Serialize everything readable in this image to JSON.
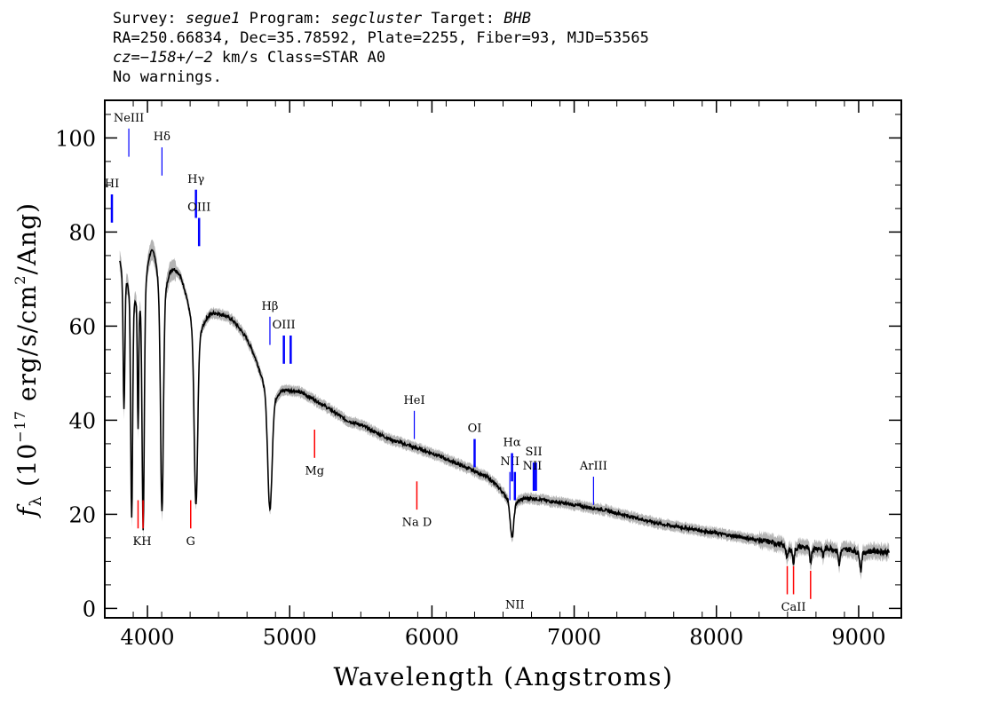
{
  "header": {
    "survey_label": "Survey:",
    "survey": "segue1",
    "program_label": "Program:",
    "program": "segcluster",
    "target_label": "Target:",
    "target": "BHB",
    "line2": "RA=250.66834, Dec=35.78592, Plate=2255, Fiber=93, MJD=53565",
    "cz_label": "cz=",
    "cz_value": "−158+/−2",
    "cz_units": "km/s Class=STAR A0",
    "line4": "No warnings."
  },
  "chart_data": {
    "type": "line",
    "xlabel": "Wavelength (Angstroms)",
    "ylabel_parts": {
      "f": "f",
      "sub": "λ",
      "open": " (10",
      "exp1": "−17",
      "mid": " erg/s/cm",
      "exp2": "2",
      "close": "/Ang)"
    },
    "xlim": [
      3700,
      9300
    ],
    "ylim": [
      -2,
      108
    ],
    "xticks": [
      4000,
      5000,
      6000,
      7000,
      8000,
      9000
    ],
    "xtick_labels": [
      "4000",
      "5000",
      "6000",
      "7000",
      "8000",
      "9000"
    ],
    "yticks": [
      0,
      20,
      40,
      60,
      80,
      100
    ],
    "ytick_labels": [
      "0",
      "20",
      "40",
      "60",
      "80",
      "100"
    ],
    "grid": false,
    "colors": {
      "flux": "#000000",
      "error": "#b4b4b4",
      "emission": "#0000ff",
      "absorption": "#ff0000"
    },
    "continuum": [
      [
        3800,
        80
      ],
      [
        3850,
        86
      ],
      [
        3900,
        88
      ],
      [
        3950,
        90
      ],
      [
        4000,
        88
      ],
      [
        4050,
        87
      ],
      [
        4100,
        82
      ],
      [
        4150,
        80
      ],
      [
        4200,
        77
      ],
      [
        4300,
        72
      ],
      [
        4400,
        67
      ],
      [
        4500,
        64
      ],
      [
        4600,
        62
      ],
      [
        4700,
        59
      ],
      [
        4800,
        55
      ],
      [
        4900,
        51
      ],
      [
        5000,
        48
      ],
      [
        5100,
        46
      ],
      [
        5200,
        44
      ],
      [
        5300,
        42
      ],
      [
        5400,
        40
      ],
      [
        5500,
        39
      ],
      [
        5600,
        37.5
      ],
      [
        5700,
        36
      ],
      [
        5800,
        35
      ],
      [
        5900,
        34
      ],
      [
        6000,
        33
      ],
      [
        6200,
        30.5
      ],
      [
        6400,
        28
      ],
      [
        6500,
        26
      ],
      [
        6600,
        24.5
      ],
      [
        6800,
        23
      ],
      [
        7000,
        22
      ],
      [
        7200,
        21
      ],
      [
        7400,
        19.5
      ],
      [
        7600,
        18
      ],
      [
        7800,
        17
      ],
      [
        8000,
        16
      ],
      [
        8200,
        15
      ],
      [
        8400,
        14
      ],
      [
        8600,
        13.5
      ],
      [
        8800,
        13
      ],
      [
        9000,
        12.5
      ],
      [
        9200,
        12
      ]
    ],
    "absorption_features": [
      {
        "center": 3835,
        "depth_to": 48,
        "width": 8
      },
      {
        "center": 3889,
        "depth_to": 27,
        "width": 9
      },
      {
        "center": 3934,
        "depth_to": 55,
        "width": 6
      },
      {
        "center": 3970,
        "depth_to": 24,
        "width": 10
      },
      {
        "center": 4102,
        "depth_to": 22,
        "width": 13
      },
      {
        "center": 4341,
        "depth_to": 22,
        "width": 16
      },
      {
        "center": 4861,
        "depth_to": 21,
        "width": 20
      },
      {
        "center": 6563,
        "depth_to": 15,
        "width": 16
      },
      {
        "center": 8498,
        "depth_to": 11,
        "width": 8
      },
      {
        "center": 8542,
        "depth_to": 10,
        "width": 8
      },
      {
        "center": 8662,
        "depth_to": 10,
        "width": 8
      },
      {
        "center": 8750,
        "depth_to": 11,
        "width": 6
      },
      {
        "center": 8863,
        "depth_to": 9,
        "width": 6
      },
      {
        "center": 9015,
        "depth_to": 8,
        "width": 7
      }
    ],
    "emission_lines": [
      {
        "label": "HI",
        "x": 3750,
        "y1": 82,
        "y2": 88,
        "label_y": 89.5,
        "bold": true
      },
      {
        "label": "NeIII",
        "x": 3869,
        "y1": 96,
        "y2": 102,
        "label_y": 103.5,
        "bold": false
      },
      {
        "label": "Hδ",
        "x": 4102,
        "y1": 92,
        "y2": 98,
        "label_y": 99.5,
        "bold": false
      },
      {
        "label": "Hγ",
        "x": 4341,
        "y1": 83,
        "y2": 89,
        "label_y": 90.5,
        "bold": true
      },
      {
        "label": "OIII",
        "x": 4363,
        "y1": 77,
        "y2": 83,
        "label_y": 84.5,
        "bold": true
      },
      {
        "label": "Hβ",
        "x": 4861,
        "y1": 56,
        "y2": 62,
        "label_y": 63.5,
        "bold": false
      },
      {
        "label": "OIII",
        "x": 4959,
        "y1": 52,
        "y2": 58,
        "label_y": 59.5,
        "bold": true
      },
      {
        "label": "",
        "x": 5007,
        "y1": 52,
        "y2": 58,
        "label_y": 0,
        "bold": true
      },
      {
        "label": "HeI",
        "x": 5876,
        "y1": 36,
        "y2": 42,
        "label_y": 43.5,
        "bold": false
      },
      {
        "label": "OI",
        "x": 6300,
        "y1": 30,
        "y2": 36,
        "label_y": 37.5,
        "bold": true
      },
      {
        "label": "NII",
        "x": 6548,
        "y1": 23,
        "y2": 29,
        "label_y": 30.5,
        "bold": false
      },
      {
        "label": "Hα",
        "x": 6563,
        "y1": 27,
        "y2": 33,
        "label_y": 34.5,
        "bold": true
      },
      {
        "label": "NII",
        "x": 6583,
        "y1": 23,
        "y2": 29,
        "label_y": 0,
        "bold": true
      },
      {
        "label": "SII",
        "x": 6716,
        "y1": 25,
        "y2": 31,
        "label_y": 32.5,
        "bold": true
      },
      {
        "label": "",
        "x": 6731,
        "y1": 25,
        "y2": 31,
        "label_y": 0,
        "bold": true
      },
      {
        "label": "NII",
        "x": 6731,
        "y1": 0,
        "y2": 0,
        "label_y": 29.5,
        "bold": false
      },
      {
        "label": "ArIII",
        "x": 7136,
        "y1": 22,
        "y2": 28,
        "label_y": 29.5,
        "bold": false
      }
    ],
    "absorption_lines": [
      {
        "label": "",
        "x": 3934,
        "y1": 17,
        "y2": 23,
        "label_y": 0
      },
      {
        "label": "KH",
        "x": 3969,
        "y1": 17,
        "y2": 23,
        "label_y": 13.5
      },
      {
        "label": "G",
        "x": 4304,
        "y1": 17,
        "y2": 23,
        "label_y": 13.5
      },
      {
        "label": "Mg",
        "x": 5175,
        "y1": 32,
        "y2": 38,
        "label_y": 28.5
      },
      {
        "label": "Na D",
        "x": 5894,
        "y1": 21,
        "y2": 27,
        "label_y": 17.5
      },
      {
        "label": "",
        "x": 8498,
        "y1": 3,
        "y2": 9,
        "label_y": 0
      },
      {
        "label": "CaII",
        "x": 8542,
        "y1": 3,
        "y2": 9,
        "label_y": -0.5
      },
      {
        "label": "",
        "x": 8662,
        "y1": 2,
        "y2": 8,
        "label_y": 0
      }
    ]
  }
}
